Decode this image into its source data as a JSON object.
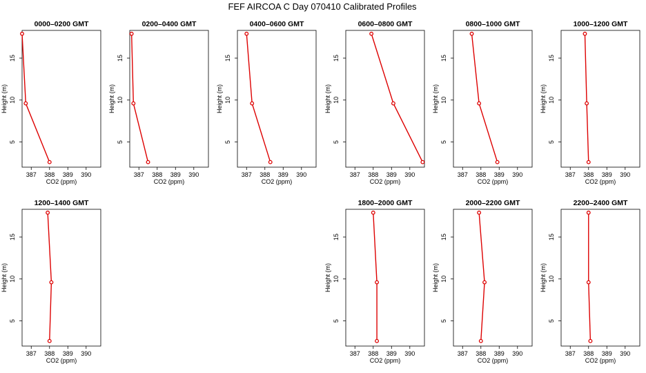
{
  "figure": {
    "title": "FEF AIRCOA C  Day 070410  Calibrated Profiles"
  },
  "chart_data": [
    {
      "type": "line",
      "title": "0000–0200 GMT",
      "xlabel": "CO2 (ppm)",
      "ylabel": "Height (m)",
      "xlim": [
        386.5,
        390.8
      ],
      "ylim": [
        2,
        18.3
      ],
      "xticks": [
        "387",
        "388",
        "389",
        "390"
      ],
      "yticks": [
        "5",
        "10",
        "15"
      ],
      "x": [
        386.5,
        386.7,
        388.0
      ],
      "y": [
        17.9,
        9.6,
        2.6
      ]
    },
    {
      "type": "line",
      "title": "0200–0400 GMT",
      "xlabel": "CO2 (ppm)",
      "ylabel": "Height (m)",
      "xlim": [
        386.5,
        390.8
      ],
      "ylim": [
        2,
        18.3
      ],
      "xticks": [
        "387",
        "388",
        "389",
        "390"
      ],
      "yticks": [
        "5",
        "10",
        "15"
      ],
      "x": [
        386.6,
        386.7,
        387.5
      ],
      "y": [
        17.9,
        9.6,
        2.6
      ]
    },
    {
      "type": "line",
      "title": "0400–0600 GMT",
      "xlabel": "CO2 (ppm)",
      "ylabel": "Height (m)",
      "xlim": [
        386.5,
        390.8
      ],
      "ylim": [
        2,
        18.3
      ],
      "xticks": [
        "387",
        "388",
        "389",
        "390"
      ],
      "yticks": [
        "5",
        "10",
        "15"
      ],
      "x": [
        387.0,
        387.3,
        388.3
      ],
      "y": [
        17.9,
        9.6,
        2.6
      ]
    },
    {
      "type": "line",
      "title": "0600–0800 GMT",
      "xlabel": "CO2 (ppm)",
      "ylabel": "Height (m)",
      "xlim": [
        386.5,
        390.8
      ],
      "ylim": [
        2,
        18.3
      ],
      "xticks": [
        "387",
        "388",
        "389",
        "390"
      ],
      "yticks": [
        "5",
        "10",
        "15"
      ],
      "x": [
        387.9,
        389.1,
        390.7
      ],
      "y": [
        17.9,
        9.6,
        2.6
      ]
    },
    {
      "type": "line",
      "title": "0800–1000 GMT",
      "xlabel": "CO2 (ppm)",
      "ylabel": "Height (m)",
      "xlim": [
        386.5,
        390.8
      ],
      "ylim": [
        2,
        18.3
      ],
      "xticks": [
        "387",
        "388",
        "389",
        "390"
      ],
      "yticks": [
        "5",
        "10",
        "15"
      ],
      "x": [
        387.5,
        387.9,
        388.9
      ],
      "y": [
        17.9,
        9.6,
        2.6
      ]
    },
    {
      "type": "line",
      "title": "1000–1200 GMT",
      "xlabel": "CO2 (ppm)",
      "ylabel": "Height (m)",
      "xlim": [
        386.5,
        390.8
      ],
      "ylim": [
        2,
        18.3
      ],
      "xticks": [
        "387",
        "388",
        "389",
        "390"
      ],
      "yticks": [
        "5",
        "10",
        "15"
      ],
      "x": [
        387.8,
        387.9,
        388.0
      ],
      "y": [
        17.9,
        9.6,
        2.6
      ]
    },
    {
      "type": "line",
      "title": "1200–1400 GMT",
      "xlabel": "CO2 (ppm)",
      "ylabel": "Height (m)",
      "xlim": [
        386.5,
        390.8
      ],
      "ylim": [
        2,
        18.3
      ],
      "xticks": [
        "387",
        "388",
        "389",
        "390"
      ],
      "yticks": [
        "5",
        "10",
        "15"
      ],
      "x": [
        387.9,
        388.1,
        388.0
      ],
      "y": [
        17.9,
        9.6,
        2.6
      ]
    },
    null,
    null,
    {
      "type": "line",
      "title": "1800–2000 GMT",
      "xlabel": "CO2 (ppm)",
      "ylabel": "Height (m)",
      "xlim": [
        386.5,
        390.8
      ],
      "ylim": [
        2,
        18.3
      ],
      "xticks": [
        "387",
        "388",
        "389",
        "390"
      ],
      "yticks": [
        "5",
        "10",
        "15"
      ],
      "x": [
        388.0,
        388.2,
        388.2
      ],
      "y": [
        17.9,
        9.6,
        2.6
      ]
    },
    {
      "type": "line",
      "title": "2000–2200 GMT",
      "xlabel": "CO2 (ppm)",
      "ylabel": "Height (m)",
      "xlim": [
        386.5,
        390.8
      ],
      "ylim": [
        2,
        18.3
      ],
      "xticks": [
        "387",
        "388",
        "389",
        "390"
      ],
      "yticks": [
        "5",
        "10",
        "15"
      ],
      "x": [
        387.9,
        388.2,
        388.0
      ],
      "y": [
        17.9,
        9.6,
        2.6
      ]
    },
    {
      "type": "line",
      "title": "2200–2400 GMT",
      "xlabel": "CO2 (ppm)",
      "ylabel": "Height (m)",
      "xlim": [
        386.5,
        390.8
      ],
      "ylim": [
        2,
        18.3
      ],
      "xticks": [
        "387",
        "388",
        "389",
        "390"
      ],
      "yticks": [
        "5",
        "10",
        "15"
      ],
      "x": [
        388.0,
        388.0,
        388.1
      ],
      "y": [
        17.9,
        9.6,
        2.6
      ]
    }
  ],
  "style": {
    "series_color": "#dd0000",
    "axis_color": "#000000"
  }
}
